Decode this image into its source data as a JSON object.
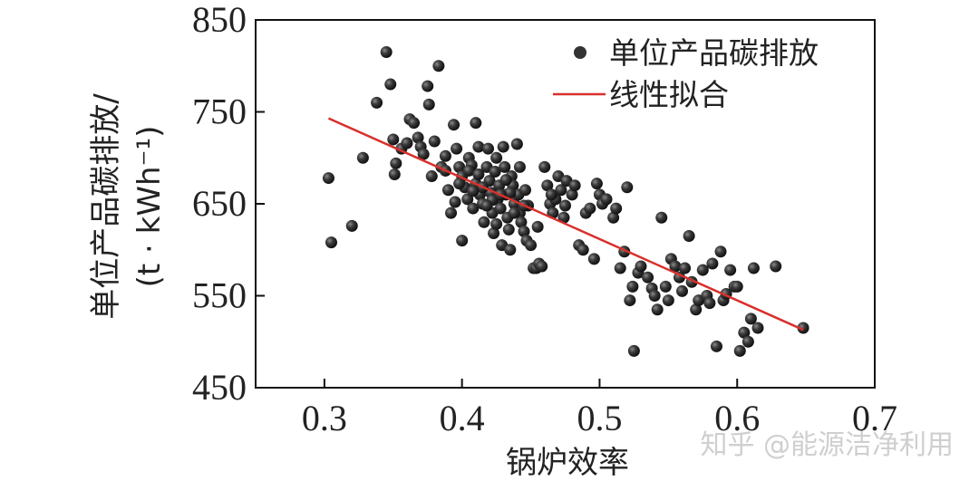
{
  "chart_data": {
    "type": "scatter",
    "xlabel": "锅炉效率",
    "ylabel_line1": "单位产品碳排放/",
    "ylabel_line2": "(t · kWh⁻¹)",
    "xlim": [
      0.25,
      0.7
    ],
    "ylim": [
      450,
      850
    ],
    "x_ticks": [
      "0.3",
      "0.4",
      "0.5",
      "0.6",
      "0.7"
    ],
    "y_ticks": [
      "450",
      "550",
      "650",
      "750",
      "850"
    ],
    "x_tick_values": [
      0.3,
      0.4,
      0.5,
      0.6,
      0.7
    ],
    "y_tick_values": [
      450,
      550,
      650,
      750,
      850
    ],
    "legend_position": "top-right",
    "marker_color": "#333333",
    "fit_color": "#d9302b",
    "series": [
      {
        "name": "单位产品碳排放",
        "kind": "points",
        "points": [
          [
            0.303,
            678
          ],
          [
            0.305,
            608
          ],
          [
            0.32,
            626
          ],
          [
            0.328,
            700
          ],
          [
            0.338,
            760
          ],
          [
            0.345,
            815
          ],
          [
            0.348,
            780
          ],
          [
            0.35,
            720
          ],
          [
            0.352,
            694
          ],
          [
            0.351,
            682
          ],
          [
            0.356,
            710
          ],
          [
            0.36,
            716
          ],
          [
            0.362,
            742
          ],
          [
            0.365,
            738
          ],
          [
            0.368,
            722
          ],
          [
            0.37,
            712
          ],
          [
            0.372,
            704
          ],
          [
            0.375,
            778
          ],
          [
            0.376,
            758
          ],
          [
            0.378,
            680
          ],
          [
            0.38,
            718
          ],
          [
            0.383,
            800
          ],
          [
            0.385,
            690
          ],
          [
            0.388,
            702
          ],
          [
            0.39,
            665
          ],
          [
            0.392,
            640
          ],
          [
            0.394,
            736
          ],
          [
            0.396,
            710
          ],
          [
            0.398,
            690
          ],
          [
            0.4,
            680
          ],
          [
            0.4,
            610
          ],
          [
            0.402,
            668
          ],
          [
            0.404,
            655
          ],
          [
            0.405,
            700
          ],
          [
            0.407,
            692
          ],
          [
            0.408,
            645
          ],
          [
            0.41,
            738
          ],
          [
            0.41,
            672
          ],
          [
            0.412,
            712
          ],
          [
            0.413,
            660
          ],
          [
            0.415,
            650
          ],
          [
            0.416,
            630
          ],
          [
            0.418,
            690
          ],
          [
            0.419,
            710
          ],
          [
            0.42,
            675
          ],
          [
            0.421,
            662
          ],
          [
            0.422,
            640
          ],
          [
            0.423,
            618
          ],
          [
            0.424,
            685
          ],
          [
            0.425,
            700
          ],
          [
            0.426,
            655
          ],
          [
            0.427,
            670
          ],
          [
            0.428,
            645
          ],
          [
            0.429,
            605
          ],
          [
            0.43,
            712
          ],
          [
            0.431,
            690
          ],
          [
            0.432,
            660
          ],
          [
            0.433,
            635
          ],
          [
            0.434,
            622
          ],
          [
            0.435,
            600
          ],
          [
            0.436,
            680
          ],
          [
            0.437,
            670
          ],
          [
            0.438,
            650
          ],
          [
            0.44,
            715
          ],
          [
            0.441,
            660
          ],
          [
            0.442,
            640
          ],
          [
            0.443,
            630
          ],
          [
            0.445,
            620
          ],
          [
            0.446,
            665
          ],
          [
            0.447,
            610
          ],
          [
            0.448,
            648
          ],
          [
            0.45,
            605
          ],
          [
            0.452,
            580
          ],
          [
            0.454,
            580
          ],
          [
            0.456,
            585
          ],
          [
            0.458,
            582
          ],
          [
            0.46,
            690
          ],
          [
            0.462,
            670
          ],
          [
            0.464,
            650
          ],
          [
            0.466,
            640
          ],
          [
            0.468,
            655
          ],
          [
            0.47,
            680
          ],
          [
            0.472,
            665
          ],
          [
            0.474,
            635
          ],
          [
            0.476,
            675
          ],
          [
            0.48,
            660
          ],
          [
            0.482,
            670
          ],
          [
            0.485,
            605
          ],
          [
            0.488,
            600
          ],
          [
            0.49,
            640
          ],
          [
            0.493,
            645
          ],
          [
            0.496,
            590
          ],
          [
            0.498,
            672
          ],
          [
            0.5,
            660
          ],
          [
            0.502,
            650
          ],
          [
            0.505,
            655
          ],
          [
            0.51,
            635
          ],
          [
            0.512,
            645
          ],
          [
            0.515,
            580
          ],
          [
            0.518,
            598
          ],
          [
            0.52,
            668
          ],
          [
            0.522,
            545
          ],
          [
            0.524,
            560
          ],
          [
            0.525,
            490
          ],
          [
            0.528,
            575
          ],
          [
            0.53,
            582
          ],
          [
            0.535,
            570
          ],
          [
            0.538,
            558
          ],
          [
            0.54,
            550
          ],
          [
            0.542,
            535
          ],
          [
            0.545,
            635
          ],
          [
            0.548,
            560
          ],
          [
            0.55,
            545
          ],
          [
            0.552,
            590
          ],
          [
            0.555,
            582
          ],
          [
            0.558,
            570
          ],
          [
            0.56,
            555
          ],
          [
            0.562,
            580
          ],
          [
            0.565,
            615
          ],
          [
            0.567,
            565
          ],
          [
            0.57,
            535
          ],
          [
            0.572,
            545
          ],
          [
            0.575,
            578
          ],
          [
            0.578,
            550
          ],
          [
            0.58,
            542
          ],
          [
            0.582,
            585
          ],
          [
            0.585,
            495
          ],
          [
            0.588,
            598
          ],
          [
            0.59,
            545
          ],
          [
            0.592,
            552
          ],
          [
            0.595,
            578
          ],
          [
            0.598,
            560
          ],
          [
            0.6,
            560
          ],
          [
            0.602,
            490
          ],
          [
            0.605,
            510
          ],
          [
            0.608,
            500
          ],
          [
            0.61,
            525
          ],
          [
            0.612,
            580
          ],
          [
            0.615,
            515
          ],
          [
            0.628,
            582
          ],
          [
            0.648,
            515
          ],
          [
            0.395,
            652
          ],
          [
            0.405,
            686
          ],
          [
            0.415,
            668
          ],
          [
            0.425,
            628
          ],
          [
            0.435,
            662
          ],
          [
            0.445,
            648
          ],
          [
            0.455,
            625
          ],
          [
            0.465,
            660
          ],
          [
            0.475,
            648
          ],
          [
            0.412,
            682
          ],
          [
            0.422,
            654
          ],
          [
            0.432,
            676
          ],
          [
            0.442,
            690
          ],
          [
            0.388,
            686
          ],
          [
            0.398,
            672
          ],
          [
            0.408,
            664
          ],
          [
            0.418,
            648
          ],
          [
            0.428,
            660
          ],
          [
            0.438,
            640
          ]
        ]
      },
      {
        "name": "线性拟合",
        "kind": "line",
        "points": [
          [
            0.303,
            743
          ],
          [
            0.648,
            513
          ]
        ]
      }
    ]
  },
  "watermark": "知乎 @能源洁净利用"
}
